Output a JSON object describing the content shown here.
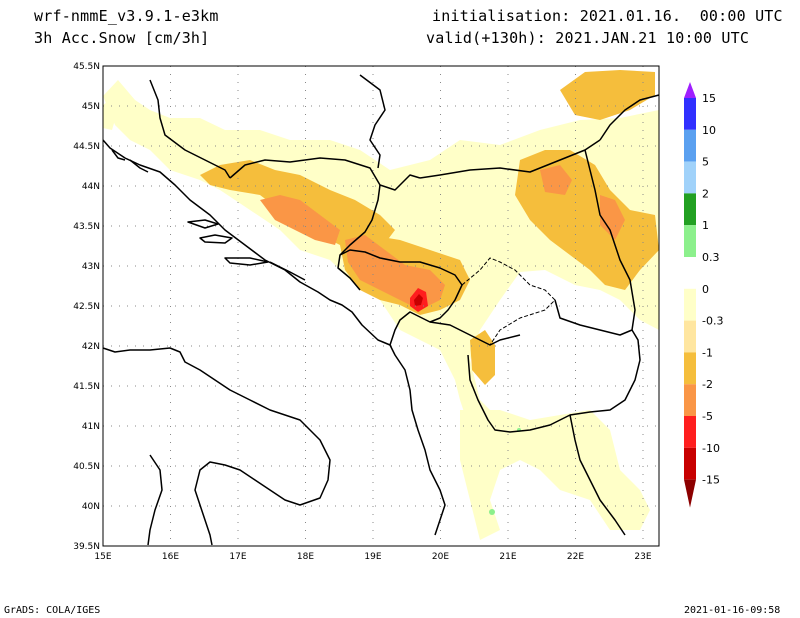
{
  "header": {
    "model": "wrf-nmmE_v3.9.1-e3km",
    "field": "3h Acc.Snow [cm/3h]",
    "init": "initialisation: 2021.01.16.  00:00 UTC",
    "valid": "valid(+130h): 2021.JAN.21 10:00 UTC"
  },
  "footer": {
    "left": "GrADS: COLA/IGES",
    "right": "2021-01-16-09:58"
  },
  "map": {
    "lat_labels": [
      "45.5N",
      "45N",
      "44.5N",
      "44N",
      "43.5N",
      "43N",
      "42.5N",
      "42N",
      "41.5N",
      "41N",
      "40.5N",
      "40N",
      "39.5N"
    ],
    "lon_labels": [
      "15E",
      "16E",
      "17E",
      "18E",
      "19E",
      "20E",
      "21E",
      "22E",
      "23E"
    ],
    "grid_style": "dotted"
  },
  "colorbar": {
    "labels": [
      "15",
      "10",
      "5",
      "2",
      "1",
      "0.3",
      "0",
      "-0.3",
      "-1",
      "-2",
      "-5",
      "-10",
      "-15"
    ],
    "colors": [
      "#9f1fff",
      "#3030ff",
      "#5aa0f0",
      "#a0d2fa",
      "#22a022",
      "#8cf08c",
      "#ffffff",
      "#ffffc8",
      "#ffe6a0",
      "#f5be3c",
      "#fa9646",
      "#ff1e1e",
      "#c80000",
      "#8c0000"
    ]
  },
  "shading_colors": {
    "light": "#ffffc8",
    "yellow": "#f5be3c",
    "orange": "#fa9646",
    "red": "#ff1e1e",
    "darkred": "#c80000",
    "green": "#8cf08c"
  }
}
